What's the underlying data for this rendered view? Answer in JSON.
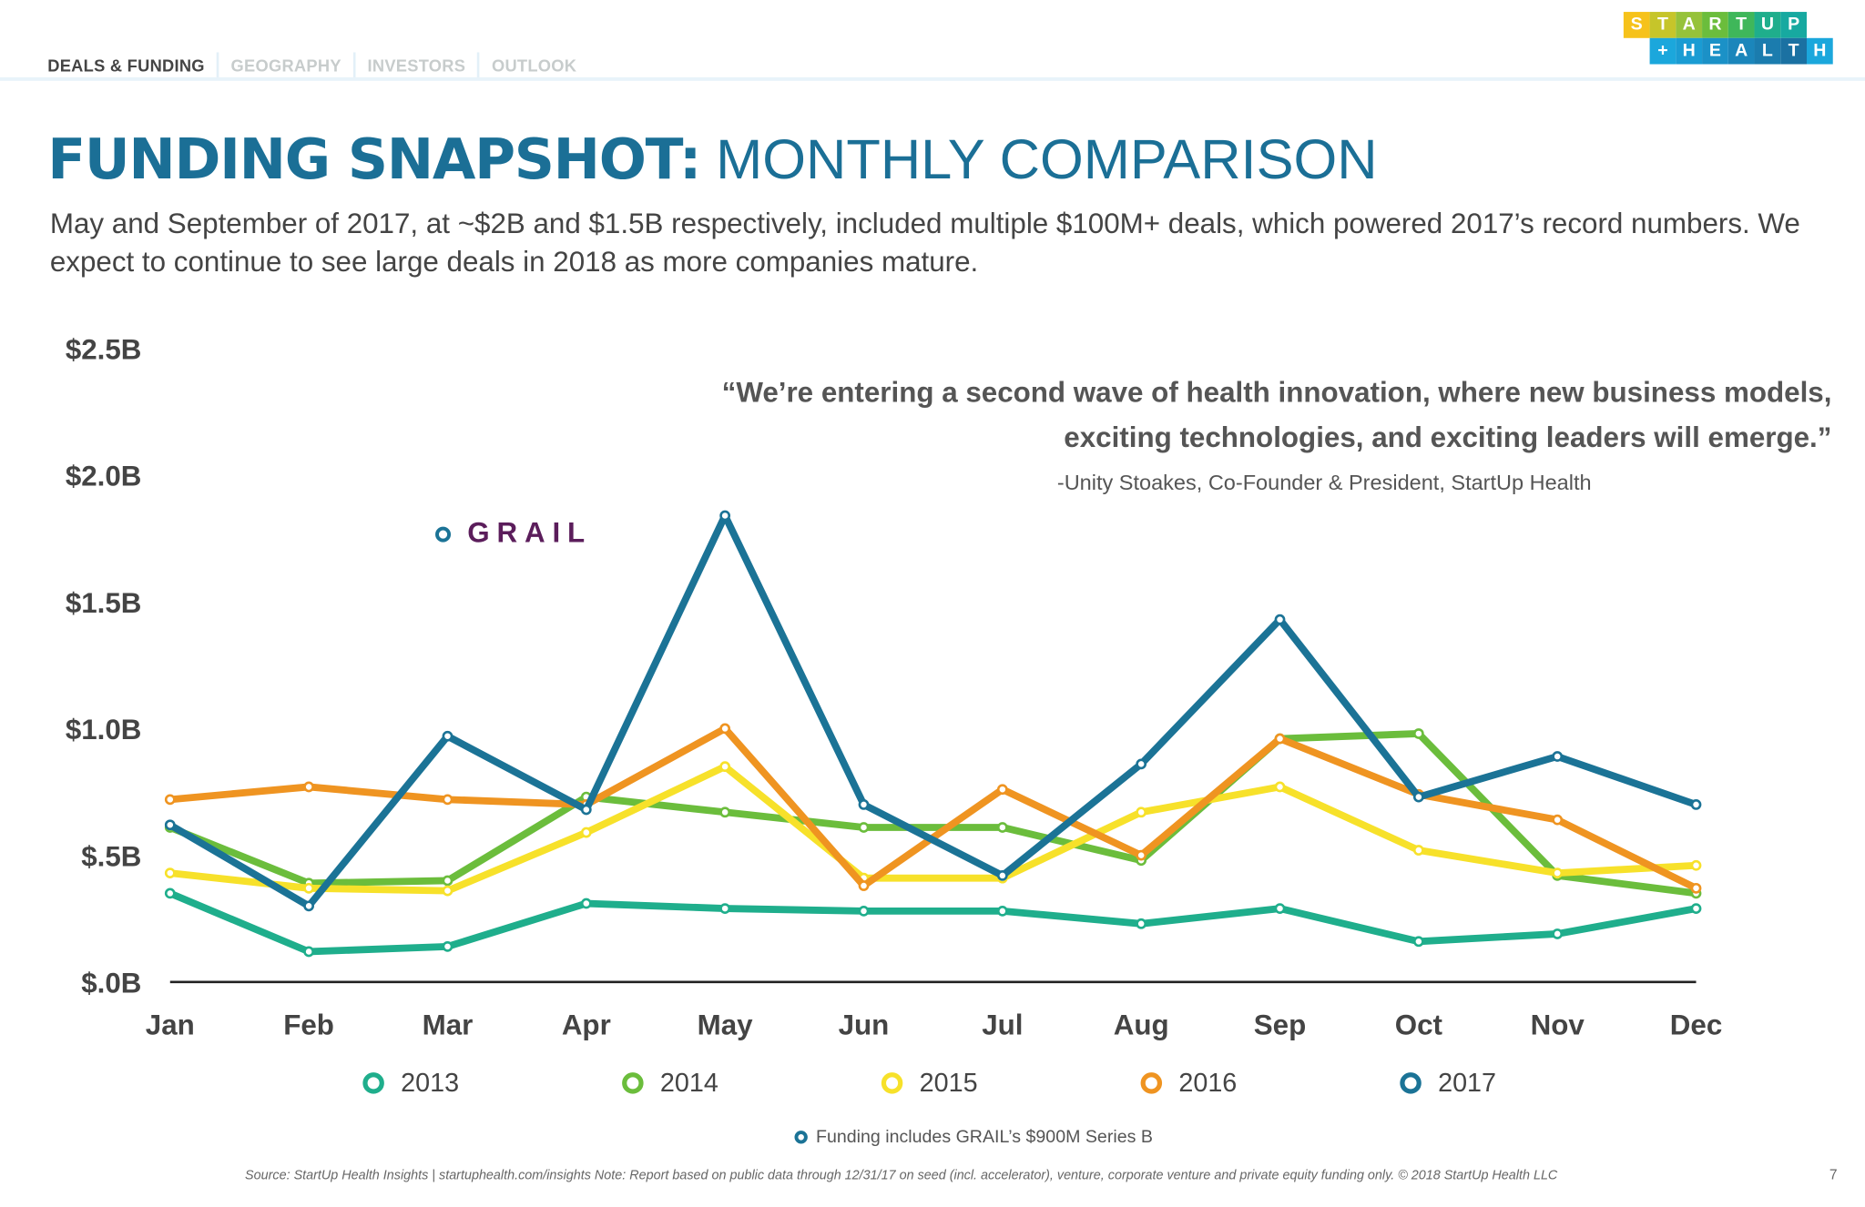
{
  "nav": {
    "tabs": [
      "DEALS & FUNDING",
      "GEOGRAPHY",
      "INVESTORS",
      "OUTLOOK"
    ],
    "active": "DEALS & FUNDING"
  },
  "logo": {
    "line1": "STARTUP",
    "line2": "+HEALTH"
  },
  "header": {
    "title_bold": "FUNDING SNAPSHOT:",
    "title_light": " MONTHLY COMPARISON",
    "subtitle": "May and September of 2017, at ~$2B and $1.5B respectively, included multiple $100M+ deals, which powered 2017’s record numbers. We expect to continue to see large deals in 2018 as more companies mature."
  },
  "quote": {
    "text": "“We’re entering a second wave of health innovation, where new business models, exciting technologies, and exciting leaders will emerge.”",
    "attribution": "-Unity Stoakes, Co-Founder & President, StartUp Health"
  },
  "annotation": {
    "grail_label": "GRAIL",
    "note": "Funding includes GRAIL’s $900M Series B"
  },
  "footer": {
    "source": "Source: StartUp Health Insights | startuphealth.com/insights Note: Report based on public data through 12/31/17 on seed (incl. accelerator), venture, corporate venture and private equity funding only. © 2018 StartUp Health LLC",
    "page": "7"
  },
  "chart_data": {
    "type": "line",
    "categories": [
      "Jan",
      "Feb",
      "Mar",
      "Apr",
      "May",
      "Jun",
      "Jul",
      "Aug",
      "Sep",
      "Oct",
      "Nov",
      "Dec"
    ],
    "ylim": [
      0,
      2.5
    ],
    "yticks": [
      "$.0B",
      "$.5B",
      "$1.0B",
      "$1.5B",
      "$2.0B",
      "$2.5B"
    ],
    "ytick_values": [
      0,
      0.5,
      1.0,
      1.5,
      2.0,
      2.5
    ],
    "unit": "$B",
    "grid": false,
    "legend_position": "bottom",
    "series": [
      {
        "name": "2013",
        "color": "#1fae8c",
        "values": [
          0.35,
          0.12,
          0.14,
          0.31,
          0.29,
          0.28,
          0.28,
          0.23,
          0.29,
          0.16,
          0.19,
          0.29
        ]
      },
      {
        "name": "2014",
        "color": "#6bbd3c",
        "values": [
          0.61,
          0.39,
          0.4,
          0.73,
          0.67,
          0.61,
          0.61,
          0.48,
          0.96,
          0.98,
          0.42,
          0.35
        ]
      },
      {
        "name": "2015",
        "color": "#f7e12a",
        "values": [
          0.43,
          0.37,
          0.36,
          0.59,
          0.85,
          0.41,
          0.41,
          0.67,
          0.77,
          0.52,
          0.43,
          0.46
        ]
      },
      {
        "name": "2016",
        "color": "#ef9421",
        "values": [
          0.72,
          0.77,
          0.72,
          0.7,
          1.0,
          0.38,
          0.76,
          0.5,
          0.96,
          0.74,
          0.64,
          0.37
        ]
      },
      {
        "name": "2017",
        "color": "#1b7396",
        "values": [
          0.62,
          0.3,
          0.97,
          0.68,
          1.84,
          0.7,
          0.42,
          0.86,
          1.43,
          0.73,
          0.89,
          0.7
        ]
      }
    ]
  }
}
